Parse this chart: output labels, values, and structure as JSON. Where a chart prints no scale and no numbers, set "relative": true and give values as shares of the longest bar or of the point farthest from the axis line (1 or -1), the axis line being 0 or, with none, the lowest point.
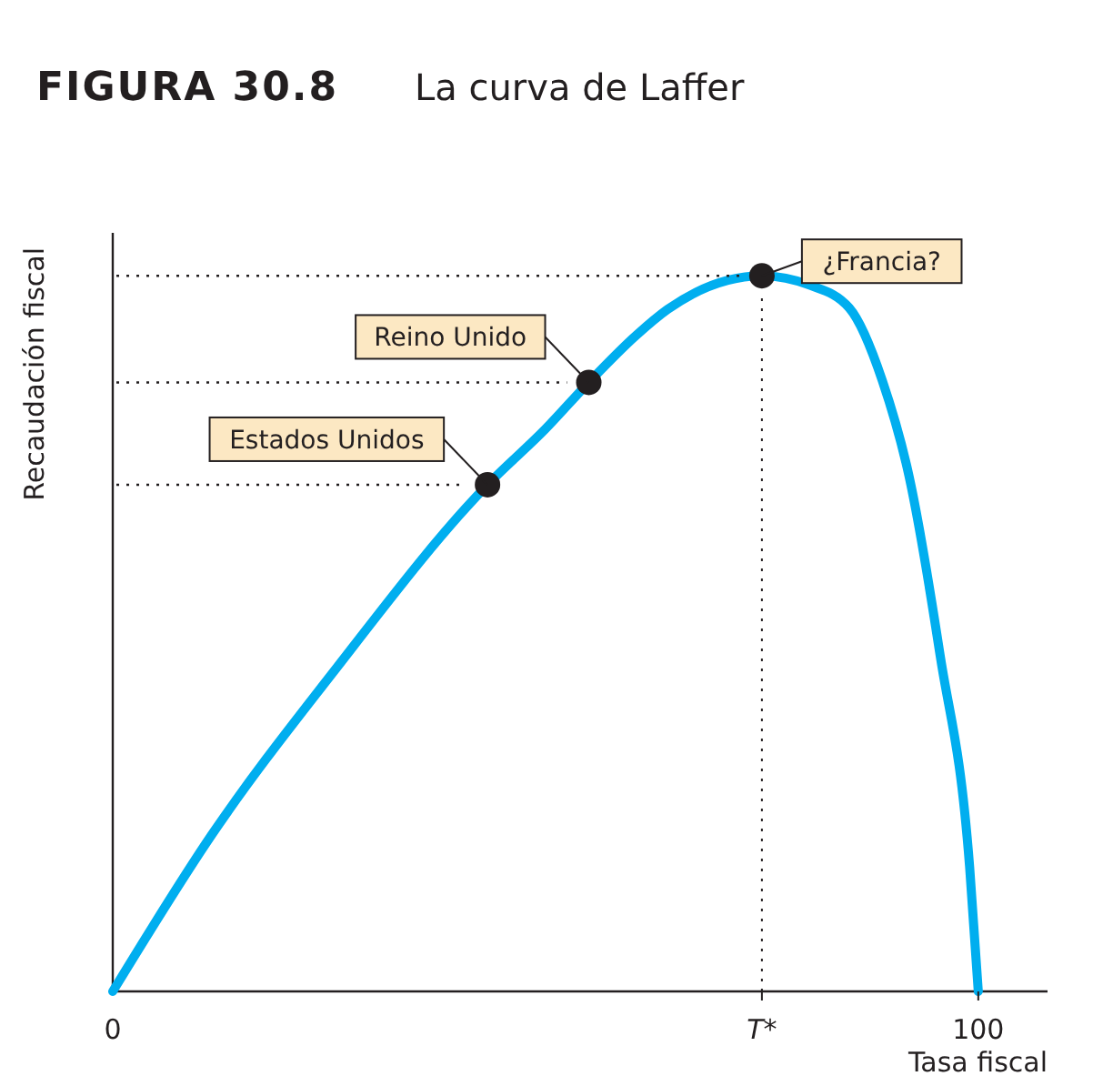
{
  "chart_data": {
    "type": "line",
    "title": "FIGURA 30.8",
    "subtitle": "La curva de Laffer",
    "xlabel": "Tasa fiscal",
    "ylabel": "Recaudación fiscal",
    "relative": true,
    "xlim": [
      0,
      108
    ],
    "xticks": [
      0,
      {
        "value": 75,
        "label": "T*"
      },
      100
    ],
    "series": [
      {
        "color": "#00aeef",
        "marker": "none",
        "x": [
          0,
          11.5,
          25.4,
          43.3,
          50,
          55,
          60.5,
          64.1,
          75,
          80.5,
          85.1,
          88.9,
          92,
          95.6,
          99,
          100
        ],
        "values": [
          0,
          0.22,
          0.445,
          0.708,
          0.786,
          0.851,
          0.917,
          0.953,
          1,
          0.987,
          0.955,
          0.854,
          0.72,
          0.469,
          0.174,
          0
        ]
      },
      {
        "type": "scatter",
        "color": "#231f20",
        "marker": "circle",
        "x": [
          43.3,
          55,
          75
        ],
        "values": [
          0.708,
          0.851,
          1
        ]
      }
    ],
    "ref_lines": [
      {
        "axis": "y",
        "value": 0.708,
        "line_style": "dotted"
      },
      {
        "axis": "y",
        "value": 0.851,
        "line_style": "dotted"
      },
      {
        "axis": "y",
        "value": 1,
        "line_style": "dotted"
      },
      {
        "axis": "x",
        "value": 75,
        "line_style": "dotted"
      }
    ],
    "annotations": [
      {
        "text": "Estados Unidos",
        "x": 43.3,
        "y": 0.708
      },
      {
        "text": "Reino Unido",
        "x": 55,
        "y": 0.851
      },
      {
        "text": "¿Francia?",
        "x": 75,
        "y": 1
      }
    ]
  }
}
